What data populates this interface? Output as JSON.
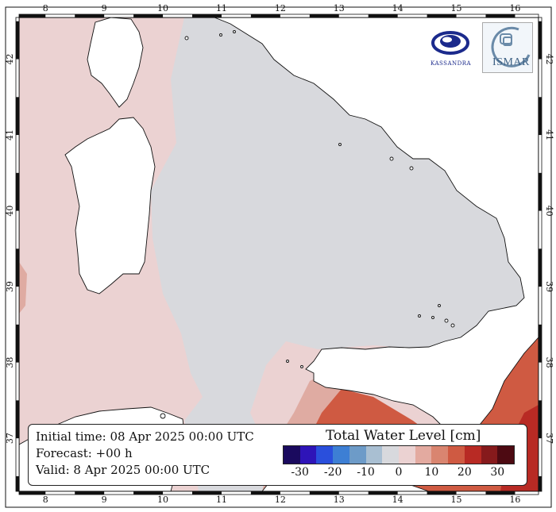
{
  "axes": {
    "x_ticks": [
      "8",
      "9",
      "10",
      "11",
      "12",
      "13",
      "14",
      "15",
      "16"
    ],
    "y_ticks": [
      "42",
      "41",
      "40",
      "39",
      "38",
      "37"
    ]
  },
  "info": {
    "initial": "Initial time: 08 Apr 2025 00:00 UTC",
    "forecast": "Forecast: +00 h",
    "valid": "Valid:  8 Apr 2025 00:00 UTC"
  },
  "colorbar": {
    "title": "Total Water Level [cm]",
    "colors": [
      "#1a0a5e",
      "#2e14b8",
      "#2a4fdc",
      "#3d7fd4",
      "#6d9bc8",
      "#a9bfd2",
      "#d8d9dd",
      "#ebd2d2",
      "#e3aaa0",
      "#d98570",
      "#cf5a42",
      "#b82a24",
      "#861a1c",
      "#4d0a12"
    ],
    "ticks": [
      "-30",
      "-20",
      "-10",
      "0",
      "10",
      "20",
      "30"
    ]
  },
  "logos": {
    "left_text": "KASSANDRA",
    "right_text": "ISMAR"
  },
  "colors": {
    "sea_neutral": "#d8d9dd",
    "sea_positive": "#ebd2d2",
    "sea_mid": "#dfaba2",
    "sea_high": "#cf5a42",
    "sea_higher": "#b82a24",
    "land": "#ffffff"
  }
}
